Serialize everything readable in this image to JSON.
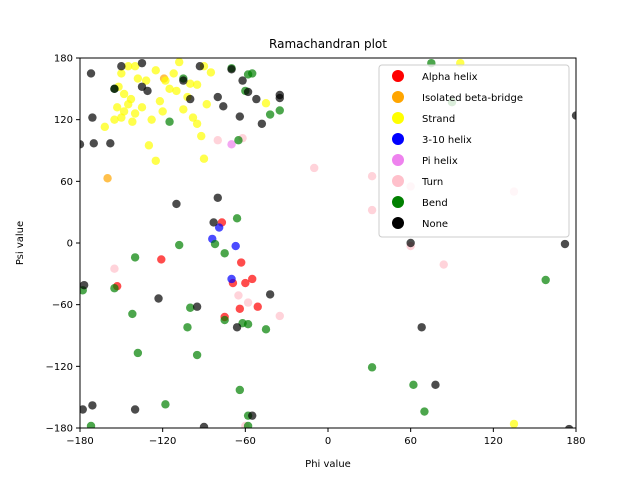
{
  "chart_data": {
    "type": "scatter",
    "title": "Ramachandran plot",
    "xlabel": "Phi value",
    "ylabel": "Psi value",
    "xlim": [
      -180,
      180
    ],
    "ylim": [
      -180,
      180
    ],
    "xticks": [
      -180,
      -120,
      -60,
      0,
      60,
      120,
      180
    ],
    "yticks": [
      -180,
      -120,
      -60,
      0,
      60,
      120,
      180
    ],
    "xtick_labels": [
      "−180",
      "−120",
      "−60",
      "0",
      "60",
      "120",
      "180"
    ],
    "ytick_labels": [
      "−180",
      "−120",
      "−60",
      "0",
      "60",
      "120",
      "180"
    ],
    "grid": false,
    "legend_position": "top-right",
    "point_alpha": 0.7,
    "series": [
      {
        "name": "Alpha helix",
        "color": "#ff0000",
        "points": [
          [
            -153,
            -42
          ],
          [
            -121,
            -16
          ],
          [
            -77,
            20
          ],
          [
            -63,
            -19
          ],
          [
            -60,
            -39
          ],
          [
            -55,
            -35
          ],
          [
            -69,
            -39
          ],
          [
            -64,
            -64
          ],
          [
            -51,
            -62
          ],
          [
            -75,
            -72
          ]
        ]
      },
      {
        "name": "Isolated beta-bridge",
        "color": "#ffa500",
        "points": [
          [
            -160,
            63
          ],
          [
            -119,
            160
          ]
        ]
      },
      {
        "name": "Strand",
        "color": "#ffff00",
        "points": [
          [
            -162,
            113
          ],
          [
            -153,
            132
          ],
          [
            -155,
            120
          ],
          [
            -150,
            122
          ],
          [
            -148,
            128
          ],
          [
            -145,
            135
          ],
          [
            -142,
            118
          ],
          [
            -140,
            126
          ],
          [
            -135,
            132
          ],
          [
            -130,
            95
          ],
          [
            -128,
            120
          ],
          [
            -125,
            80
          ],
          [
            -122,
            138
          ],
          [
            -120,
            128
          ],
          [
            -118,
            158
          ],
          [
            -115,
            150
          ],
          [
            -112,
            165
          ],
          [
            -110,
            148
          ],
          [
            -108,
            176
          ],
          [
            -105,
            130
          ],
          [
            -102,
            142
          ],
          [
            -100,
            155
          ],
          [
            -98,
            122
          ],
          [
            -95,
            116
          ],
          [
            -92,
            104
          ],
          [
            -90,
            82
          ],
          [
            -88,
            135
          ],
          [
            -85,
            166
          ],
          [
            -150,
            165
          ],
          [
            -145,
            172
          ],
          [
            -140,
            172
          ],
          [
            -138,
            160
          ],
          [
            -132,
            158
          ],
          [
            -125,
            168
          ],
          [
            -95,
            154
          ],
          [
            -152,
            152
          ],
          [
            -148,
            145
          ],
          [
            -143,
            140
          ],
          [
            -90,
            172
          ],
          [
            -45,
            136
          ],
          [
            135,
            -176
          ],
          [
            96,
            175
          ]
        ]
      },
      {
        "name": "3-10 helix",
        "color": "#0000ff",
        "points": [
          [
            -79,
            15
          ],
          [
            -84,
            4
          ],
          [
            -67,
            -3
          ],
          [
            -70,
            -35
          ]
        ]
      },
      {
        "name": "Pi helix",
        "color": "#ee82ee",
        "points": [
          [
            -70,
            96
          ]
        ]
      },
      {
        "name": "Turn",
        "color": "#ffc0cb",
        "points": [
          [
            -155,
            -25
          ],
          [
            -80,
            100
          ],
          [
            -62,
            102
          ],
          [
            -65,
            -51
          ],
          [
            -58,
            -58
          ],
          [
            -35,
            -71
          ],
          [
            -60,
            -178
          ],
          [
            -10,
            73
          ],
          [
            32,
            65
          ],
          [
            32,
            32
          ],
          [
            60,
            -3
          ],
          [
            84,
            -21
          ],
          [
            135,
            50
          ],
          [
            60,
            55
          ]
        ]
      },
      {
        "name": "Bend",
        "color": "#008000",
        "points": [
          [
            -178,
            -46
          ],
          [
            -172,
            -178
          ],
          [
            -155,
            150
          ],
          [
            -155,
            -44
          ],
          [
            -142,
            -69
          ],
          [
            -140,
            -14
          ],
          [
            -138,
            -107
          ],
          [
            -118,
            -157
          ],
          [
            -115,
            118
          ],
          [
            -108,
            -2
          ],
          [
            -105,
            160
          ],
          [
            -102,
            -82
          ],
          [
            -100,
            -63
          ],
          [
            -95,
            -109
          ],
          [
            -82,
            -1
          ],
          [
            -75,
            -10
          ],
          [
            -75,
            -75
          ],
          [
            -70,
            170
          ],
          [
            -66,
            24
          ],
          [
            -64,
            -143
          ],
          [
            -62,
            -78
          ],
          [
            -60,
            148
          ],
          [
            -58,
            164
          ],
          [
            -58,
            -79
          ],
          [
            -58,
            -168
          ],
          [
            -58,
            -178
          ],
          [
            -55,
            165
          ],
          [
            -45,
            -84
          ],
          [
            -42,
            125
          ],
          [
            -35,
            129
          ],
          [
            -65,
            100
          ],
          [
            75,
            175
          ],
          [
            90,
            137
          ],
          [
            158,
            -36
          ],
          [
            70,
            -164
          ],
          [
            62,
            -138
          ],
          [
            32,
            -121
          ]
        ]
      },
      {
        "name": "None",
        "color": "#000000",
        "points": [
          [
            -180,
            96
          ],
          [
            -178,
            -162
          ],
          [
            -177,
            -41
          ],
          [
            -172,
            165
          ],
          [
            -171,
            122
          ],
          [
            -170,
            97
          ],
          [
            -171,
            -158
          ],
          [
            -158,
            97
          ],
          [
            -155,
            150
          ],
          [
            -150,
            172
          ],
          [
            -140,
            -162
          ],
          [
            -135,
            175
          ],
          [
            -135,
            152
          ],
          [
            -131,
            148
          ],
          [
            -123,
            -54
          ],
          [
            -110,
            38
          ],
          [
            -105,
            158
          ],
          [
            -100,
            140
          ],
          [
            -95,
            -62
          ],
          [
            -93,
            172
          ],
          [
            -90,
            -179
          ],
          [
            -83,
            20
          ],
          [
            -80,
            44
          ],
          [
            -80,
            142
          ],
          [
            -76,
            133
          ],
          [
            -70,
            169
          ],
          [
            -66,
            -82
          ],
          [
            -64,
            123
          ],
          [
            -62,
            158
          ],
          [
            -58,
            147
          ],
          [
            -55,
            -168
          ],
          [
            -52,
            140
          ],
          [
            -48,
            116
          ],
          [
            -42,
            -50
          ],
          [
            -35,
            141
          ],
          [
            -35,
            144
          ],
          [
            60,
            0
          ],
          [
            68,
            -82
          ],
          [
            78,
            -138
          ],
          [
            172,
            -1
          ],
          [
            175,
            -181
          ],
          [
            180,
            124
          ]
        ]
      }
    ]
  }
}
